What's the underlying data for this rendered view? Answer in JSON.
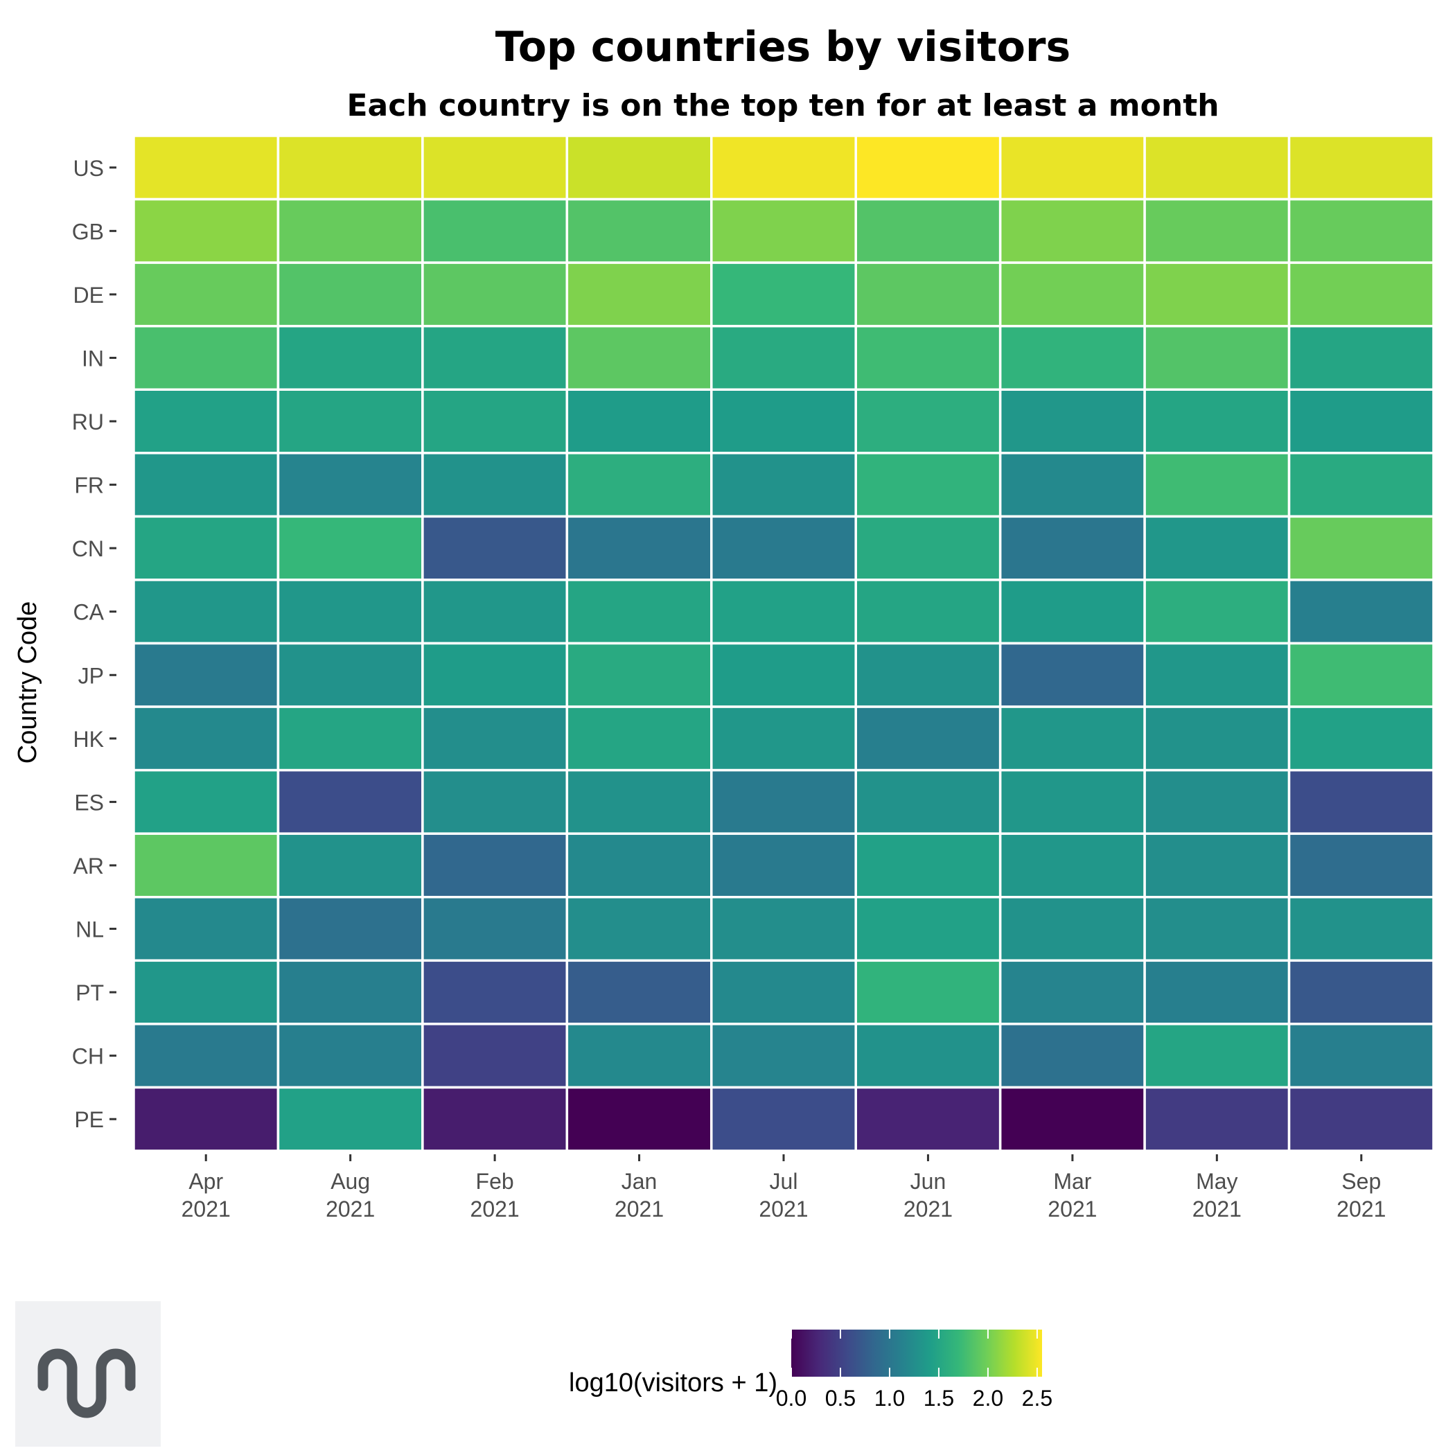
{
  "chart_data": {
    "type": "heatmap",
    "title": "Top countries by visitors",
    "subtitle": "Each country is on the top ten for at least a month",
    "xlabel": "",
    "ylabel": "Country Code",
    "x_categories": [
      {
        "month": "Apr",
        "year": "2021"
      },
      {
        "month": "Aug",
        "year": "2021"
      },
      {
        "month": "Feb",
        "year": "2021"
      },
      {
        "month": "Jan",
        "year": "2021"
      },
      {
        "month": "Jul",
        "year": "2021"
      },
      {
        "month": "Jun",
        "year": "2021"
      },
      {
        "month": "Mar",
        "year": "2021"
      },
      {
        "month": "May",
        "year": "2021"
      },
      {
        "month": "Sep",
        "year": "2021"
      }
    ],
    "y_categories": [
      "US",
      "GB",
      "DE",
      "IN",
      "RU",
      "FR",
      "CN",
      "CA",
      "JP",
      "HK",
      "ES",
      "AR",
      "NL",
      "PT",
      "CH",
      "PE"
    ],
    "values": [
      [
        2.45,
        2.42,
        2.42,
        2.35,
        2.5,
        2.55,
        2.47,
        2.42,
        2.42
      ],
      [
        2.1,
        1.95,
        1.8,
        1.85,
        2.05,
        1.85,
        2.05,
        1.95,
        1.95
      ],
      [
        1.95,
        1.85,
        1.9,
        2.05,
        1.7,
        1.9,
        2.0,
        2.05,
        2.0
      ],
      [
        1.8,
        1.5,
        1.5,
        1.9,
        1.55,
        1.75,
        1.65,
        1.85,
        1.5
      ],
      [
        1.45,
        1.5,
        1.5,
        1.4,
        1.4,
        1.6,
        1.35,
        1.5,
        1.4
      ],
      [
        1.35,
        1.15,
        1.3,
        1.6,
        1.3,
        1.65,
        1.2,
        1.75,
        1.55
      ],
      [
        1.5,
        1.7,
        0.7,
        1.0,
        1.05,
        1.55,
        1.0,
        1.35,
        1.95
      ],
      [
        1.35,
        1.35,
        1.35,
        1.5,
        1.45,
        1.5,
        1.4,
        1.6,
        1.1
      ],
      [
        1.05,
        1.3,
        1.4,
        1.55,
        1.4,
        1.3,
        0.85,
        1.35,
        1.75
      ],
      [
        1.2,
        1.5,
        1.25,
        1.5,
        1.35,
        1.1,
        1.35,
        1.3,
        1.45
      ],
      [
        1.45,
        0.6,
        1.25,
        1.3,
        1.05,
        1.3,
        1.35,
        1.25,
        0.6
      ],
      [
        1.9,
        1.3,
        0.85,
        1.2,
        1.05,
        1.45,
        1.35,
        1.25,
        0.9
      ],
      [
        1.2,
        0.95,
        1.05,
        1.25,
        1.25,
        1.45,
        1.3,
        1.25,
        1.3
      ],
      [
        1.35,
        1.1,
        0.6,
        0.75,
        1.2,
        1.65,
        1.15,
        1.1,
        0.7
      ],
      [
        1.05,
        1.1,
        0.5,
        1.2,
        1.15,
        1.3,
        0.95,
        1.5,
        1.1
      ],
      [
        0.2,
        1.45,
        0.2,
        0.0,
        0.6,
        0.25,
        0.0,
        0.45,
        0.45
      ]
    ],
    "legend": {
      "title": "log10(visitors + 1)",
      "position": "bottom",
      "min": 0.0,
      "max": 2.55,
      "breaks": [
        "0.0",
        "0.5",
        "1.0",
        "1.5",
        "2.0",
        "2.5"
      ]
    },
    "colorscale": "viridis",
    "colors": [
      "#440154",
      "#482878",
      "#3e4989",
      "#31688e",
      "#26828e",
      "#1f9e89",
      "#35b779",
      "#6ece58",
      "#b5de2b",
      "#fde725"
    ],
    "grid": false
  },
  "logo": {
    "name": "logo-icon"
  }
}
